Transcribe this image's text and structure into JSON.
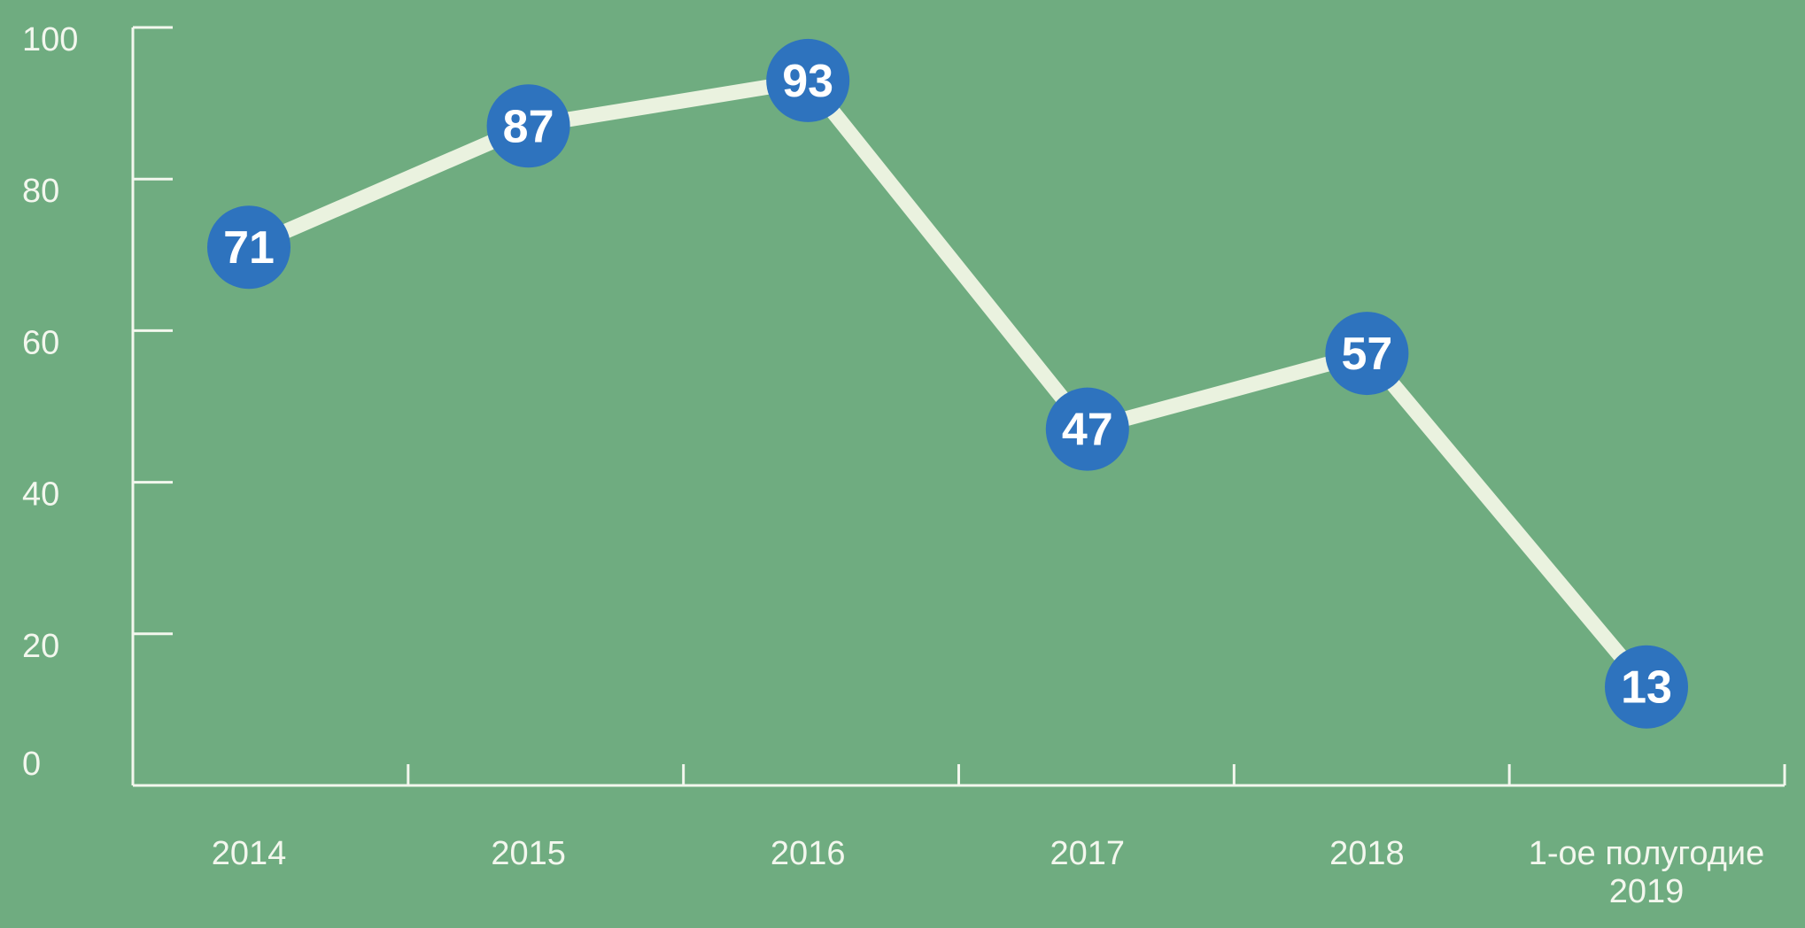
{
  "chart_data": {
    "type": "line",
    "categories": [
      "2014",
      "2015",
      "2016",
      "2017",
      "2018",
      "1-ое полугодие\n2019"
    ],
    "values": [
      71,
      87,
      93,
      47,
      57,
      13
    ],
    "title": "",
    "xlabel": "",
    "ylabel": "",
    "ylim": [
      0,
      100
    ],
    "yticks": [
      0,
      20,
      40,
      60,
      80,
      100
    ],
    "grid": false,
    "legend": "none",
    "data_labels_on_points": true,
    "colors": {
      "background": "#6FAC80",
      "line": "#EAF2DF",
      "marker_fill": "#2E73BE",
      "marker_text": "#FFFFFF",
      "axis": "#F3F7EE"
    }
  }
}
